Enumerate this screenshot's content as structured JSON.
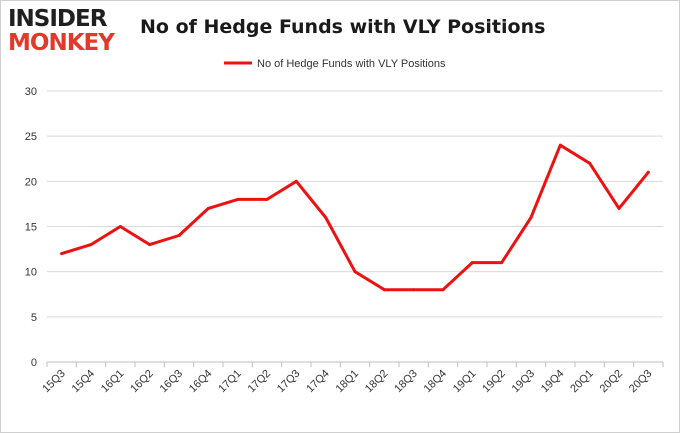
{
  "logo": {
    "line1": "INSIDER",
    "line2": "MONKEY"
  },
  "colors": {
    "series": "#ee1111",
    "grid": "#d9d9d9",
    "axis": "#bfbfbf",
    "text": "#333333",
    "logo_accent": "#e23a2a"
  },
  "chart_data": {
    "type": "line",
    "title": "No of Hedge Funds with VLY Positions",
    "xlabel": "",
    "ylabel": "",
    "ylim": [
      0,
      30
    ],
    "yticks": [
      0,
      5,
      10,
      15,
      20,
      25,
      30
    ],
    "grid": true,
    "legend": "top-center",
    "categories": [
      "15Q3",
      "15Q4",
      "16Q1",
      "16Q2",
      "16Q3",
      "16Q4",
      "17Q1",
      "17Q2",
      "17Q3",
      "17Q4",
      "18Q1",
      "18Q2",
      "18Q3",
      "18Q4",
      "19Q1",
      "19Q2",
      "19Q3",
      "19Q4",
      "20Q1",
      "20Q2",
      "20Q3"
    ],
    "series": [
      {
        "name": "No of Hedge Funds with VLY Positions",
        "values": [
          12,
          13,
          15,
          13,
          14,
          17,
          18,
          18,
          20,
          16,
          10,
          8,
          8,
          8,
          11,
          11,
          16,
          24,
          22,
          17,
          21
        ]
      }
    ]
  }
}
